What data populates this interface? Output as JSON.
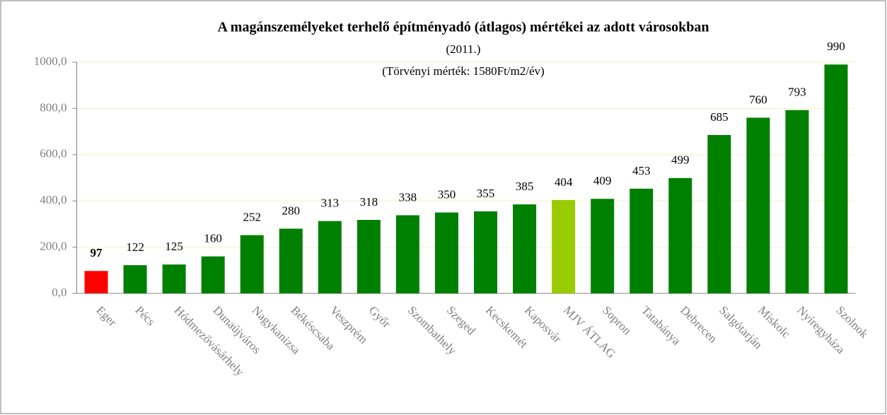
{
  "chart_data": {
    "type": "bar",
    "title": "A magánszemélyeket terhelő építményadó (átlagos) mértékei az adott városokban",
    "subtitle": "(2011.)",
    "annotation": "(Törvényi mérték: 1580Ft/m2/év)",
    "categories": [
      "Eger",
      "Pécs",
      "Hódmezővásárhely",
      "Dunaújváros",
      "Nagykanizsa",
      "Békéscsaba",
      "Veszprém",
      "Győr",
      "Szombathely",
      "Szeged",
      "Kecskemét",
      "Kaposvár",
      "MJV ÁTLAG",
      "Sopron",
      "Tatabánya",
      "Debrecen",
      "Salgótarján",
      "Miskolc",
      "Nyíregyháza",
      "Szolnok"
    ],
    "values": [
      97,
      122,
      125,
      160,
      252,
      280,
      313,
      318,
      338,
      350,
      355,
      385,
      404,
      409,
      453,
      499,
      685,
      760,
      793,
      990
    ],
    "colors": [
      "#ff0000",
      "#008000",
      "#008000",
      "#008000",
      "#008000",
      "#008000",
      "#008000",
      "#008000",
      "#008000",
      "#008000",
      "#008000",
      "#008000",
      "#99cc00",
      "#008000",
      "#008000",
      "#008000",
      "#008000",
      "#008000",
      "#008000",
      "#008000"
    ],
    "ylim": [
      0,
      1000
    ],
    "yticks": [
      {
        "value": 0,
        "label": "0,0"
      },
      {
        "value": 200,
        "label": "200,0"
      },
      {
        "value": 400,
        "label": "400,0"
      },
      {
        "value": 600,
        "label": "600,0"
      },
      {
        "value": 800,
        "label": "800,0"
      },
      {
        "value": 1000,
        "label": "1000,0"
      }
    ],
    "grid": true
  }
}
